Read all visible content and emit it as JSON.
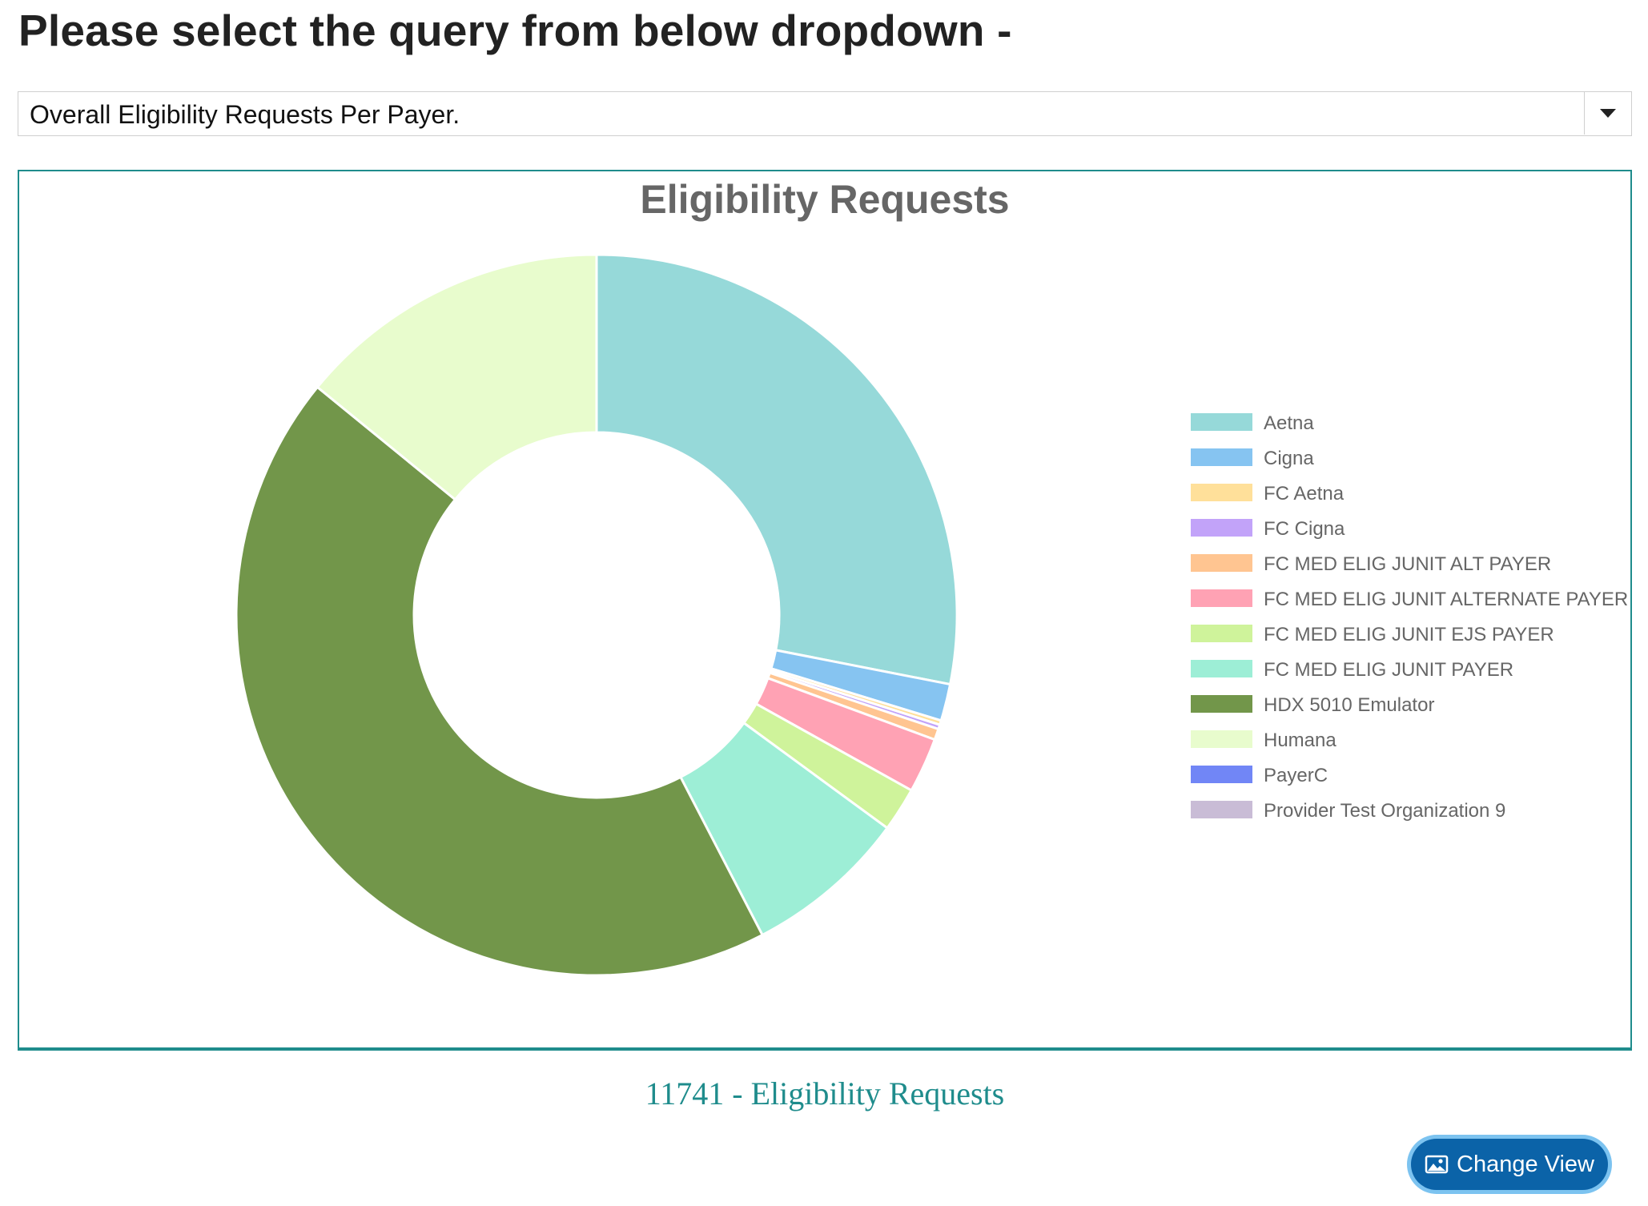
{
  "header": {
    "title": "Please select the query from below dropdown -"
  },
  "query_select": {
    "selected": "Overall Eligibility Requests Per Payer."
  },
  "summary": {
    "text": "11741 - Eligibility Requests"
  },
  "actions": {
    "change_view_label": "Change View"
  },
  "icons": {
    "dropdown": "caret-down-icon",
    "change_view": "image-icon"
  },
  "chart_data": {
    "type": "pie",
    "variant": "doughnut",
    "title": "Eligibility Requests",
    "legend": "right",
    "total": 11741,
    "labels": [
      "Aetna",
      "Cigna",
      "FC Aetna",
      "FC Cigna",
      "FC MED ELIG JUNIT ALT PAYER",
      "FC MED ELIG JUNIT ALTERNATE PAYER",
      "FC MED ELIG JUNIT EJS PAYER",
      "FC MED ELIG JUNIT PAYER",
      "HDX 5010 Emulator",
      "Humana",
      "PayerC",
      "Provider Test Organization 9"
    ],
    "values": [
      3297,
      194,
      23,
      23,
      58,
      290,
      232,
      860,
      5108,
      1656,
      0,
      0
    ],
    "colors": [
      "#96d9d9",
      "#86c4f1",
      "#ffe09a",
      "#c2a3f9",
      "#ffc591",
      "#ffa2b4",
      "#cff39b",
      "#9deed6",
      "#72964a",
      "#e8fccd",
      "#7186f6",
      "#c9bcd6"
    ]
  }
}
